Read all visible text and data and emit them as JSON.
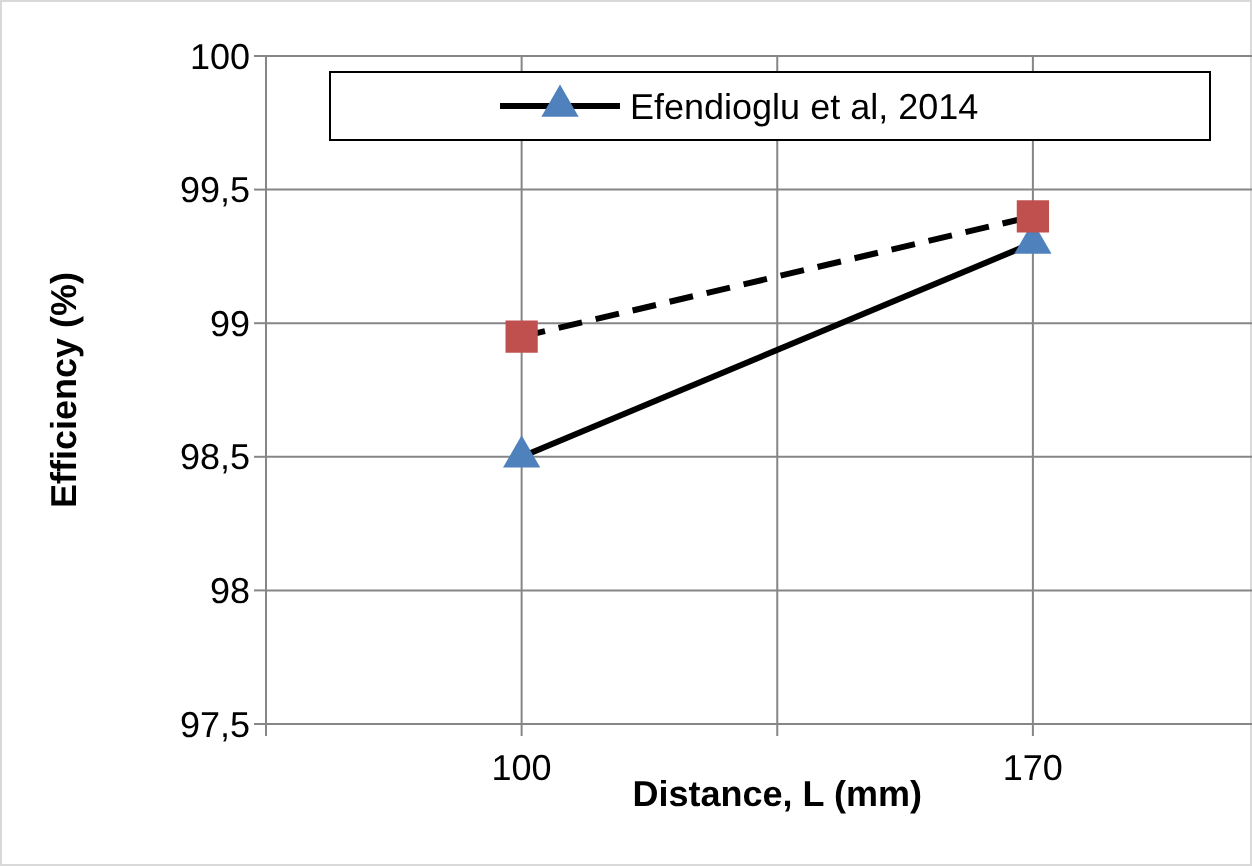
{
  "chart_data": {
    "type": "line",
    "xlabel": "Distance, L (mm)",
    "ylabel": "Efficiency (%)",
    "x": [
      100,
      170
    ],
    "xlim": [
      65,
      200
    ],
    "xticks": [
      {
        "value": 65,
        "label": null
      },
      100,
      {
        "value": 135,
        "label": null
      },
      170
    ],
    "ylim": [
      97.5,
      100
    ],
    "yticks": [
      {
        "value": 97.5,
        "label": "97,5"
      },
      {
        "value": 98,
        "label": "98"
      },
      {
        "value": 98.5,
        "label": "98,5"
      },
      {
        "value": 99,
        "label": "99"
      },
      {
        "value": 99.5,
        "label": "99,5"
      },
      {
        "value": 100,
        "label": "100"
      }
    ],
    "grid": true,
    "legend": "top right",
    "series": [
      {
        "name": "Efendioglu et al, 2014",
        "color": "#000000",
        "colors": [
          "#4f81bd",
          "#4f81bd"
        ],
        "marker": "triangle",
        "line_style": "solid",
        "values": [
          98.5,
          99.3
        ]
      },
      {
        "color": "#000000",
        "colors": [
          "#c0504d",
          "#c0504d"
        ],
        "marker": "square",
        "line_style": "dashed",
        "values": [
          98.95,
          99.4
        ]
      }
    ]
  }
}
